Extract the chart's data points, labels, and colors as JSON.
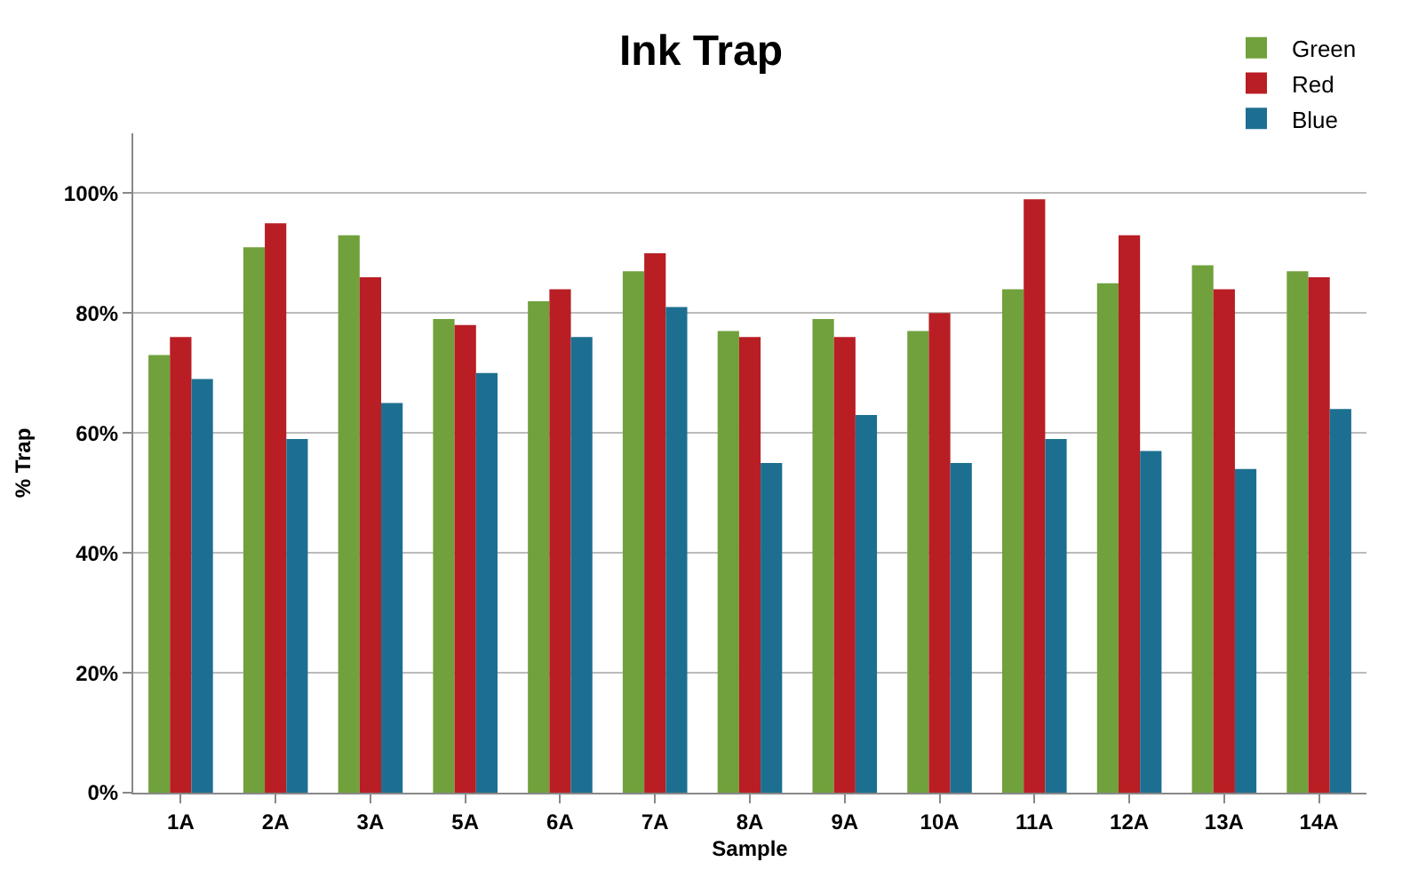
{
  "chart_data": {
    "type": "bar",
    "title": "Ink Trap",
    "xlabel": "Sample",
    "ylabel": "% Trap",
    "categories": [
      "1A",
      "2A",
      "3A",
      "5A",
      "6A",
      "7A",
      "8A",
      "9A",
      "10A",
      "11A",
      "12A",
      "13A",
      "14A"
    ],
    "series": [
      {
        "name": "Green",
        "color": "#70a13c",
        "values": [
          73,
          91,
          93,
          79,
          82,
          87,
          77,
          79,
          77,
          84,
          85,
          88,
          87
        ]
      },
      {
        "name": "Red",
        "color": "#b81e24",
        "values": [
          76,
          95,
          86,
          78,
          84,
          90,
          76,
          76,
          80,
          99,
          93,
          84,
          86
        ]
      },
      {
        "name": "Blue",
        "color": "#1d6f91",
        "values": [
          69,
          59,
          65,
          70,
          76,
          81,
          55,
          63,
          55,
          59,
          57,
          54,
          64
        ]
      }
    ],
    "ylim": [
      0,
      110
    ],
    "yticks": [
      {
        "value": 0,
        "label": "0%"
      },
      {
        "value": 20,
        "label": "20%"
      },
      {
        "value": 40,
        "label": "40%"
      },
      {
        "value": 60,
        "label": "60%"
      },
      {
        "value": 80,
        "label": "80%"
      },
      {
        "value": 100,
        "label": "100%"
      }
    ],
    "grid": "y",
    "legend": "top right"
  }
}
